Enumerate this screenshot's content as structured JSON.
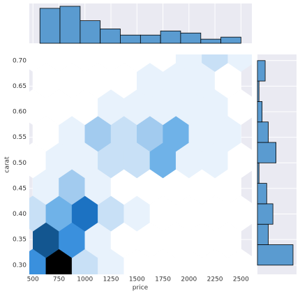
{
  "chart_data": [
    {
      "type": "hexbin",
      "x_label": "price",
      "y_label": "carat",
      "xlim": [
        465,
        2605
      ],
      "ylim": [
        0.282,
        0.712
      ],
      "xticks": [
        500,
        750,
        1000,
        1250,
        1500,
        1750,
        2000,
        2250,
        2500
      ],
      "yticks": [
        {
          "value": 0.3,
          "label": "0.30"
        },
        0.35,
        {
          "value": 0.4,
          "label": "0.40"
        },
        0.45,
        {
          "value": 0.5,
          "label": "0.50"
        },
        0.55,
        {
          "value": 0.6,
          "label": "0.60"
        },
        0.65,
        {
          "value": 0.7,
          "label": "0.70"
        }
      ],
      "grid": true,
      "colormap": [
        "#ffffff",
        "#e8f2fc",
        "#c8e0f6",
        "#a2cbef",
        "#6fb2e8",
        "#3a90dd",
        "#1c72c2",
        "#135690",
        "#000000"
      ],
      "rows": [
        {
          "y": 0.297,
          "x": [
            500,
            750,
            1000,
            1250,
            1500,
            1750,
            2000,
            2250,
            2500
          ],
          "counts": [
            5,
            8,
            2,
            1,
            0,
            0,
            0,
            0,
            0
          ]
        },
        {
          "y": 0.349,
          "x": [
            625,
            875,
            1125,
            1375,
            1625,
            1875,
            2125,
            2375
          ],
          "counts": [
            7,
            5,
            1,
            0,
            0,
            0,
            0,
            0
          ]
        },
        {
          "y": 0.401,
          "x": [
            500,
            750,
            1000,
            1250,
            1500,
            1750,
            2000,
            2250,
            2500
          ],
          "counts": [
            2,
            4,
            6,
            2,
            1,
            0,
            0,
            0,
            0
          ]
        },
        {
          "y": 0.453,
          "x": [
            625,
            875,
            1125,
            1375,
            1625,
            1875,
            2125,
            2375
          ],
          "counts": [
            1,
            3,
            1,
            0,
            0,
            0,
            0,
            0
          ]
        },
        {
          "y": 0.505,
          "x": [
            500,
            750,
            1000,
            1250,
            1500,
            1750,
            2000,
            2250,
            2500
          ],
          "counts": [
            0,
            1,
            1,
            2,
            2,
            4,
            1,
            1,
            0
          ]
        },
        {
          "y": 0.557,
          "x": [
            625,
            875,
            1125,
            1375,
            1625,
            1875,
            2125,
            2375
          ],
          "counts": [
            0,
            1,
            3,
            2,
            3,
            4,
            1,
            1
          ]
        },
        {
          "y": 0.609,
          "x": [
            500,
            750,
            1000,
            1250,
            1500,
            1750,
            2000,
            2250,
            2500
          ],
          "counts": [
            0,
            0,
            0,
            1,
            1,
            1,
            1,
            1,
            0
          ]
        },
        {
          "y": 0.661,
          "x": [
            625,
            875,
            1125,
            1375,
            1625,
            1875,
            2125,
            2375
          ],
          "counts": [
            0,
            0,
            0,
            0,
            1,
            1,
            1,
            0
          ]
        },
        {
          "y": 0.713,
          "x": [
            500,
            750,
            1000,
            1250,
            1500,
            1750,
            2000,
            2250,
            2500
          ],
          "counts": [
            0,
            0,
            0,
            0,
            0,
            0,
            1,
            2,
            1
          ]
        }
      ]
    },
    {
      "type": "histogram",
      "orientation": "vertical",
      "color": "#5a9bd0",
      "bins": [
        567,
        760,
        954,
        1147,
        1340,
        1534,
        1727,
        1920,
        2114,
        2307,
        2500
      ],
      "counts": [
        17,
        18,
        11,
        7,
        4,
        4,
        6,
        5,
        2,
        3
      ]
    },
    {
      "type": "histogram",
      "orientation": "horizontal",
      "color": "#5a9bd0",
      "bins": [
        0.3,
        0.34,
        0.38,
        0.42,
        0.46,
        0.5,
        0.54,
        0.58,
        0.62,
        0.66,
        0.7
      ],
      "counts": [
        23,
        7,
        10,
        6,
        1,
        12,
        7,
        3,
        1,
        5
      ]
    }
  ]
}
